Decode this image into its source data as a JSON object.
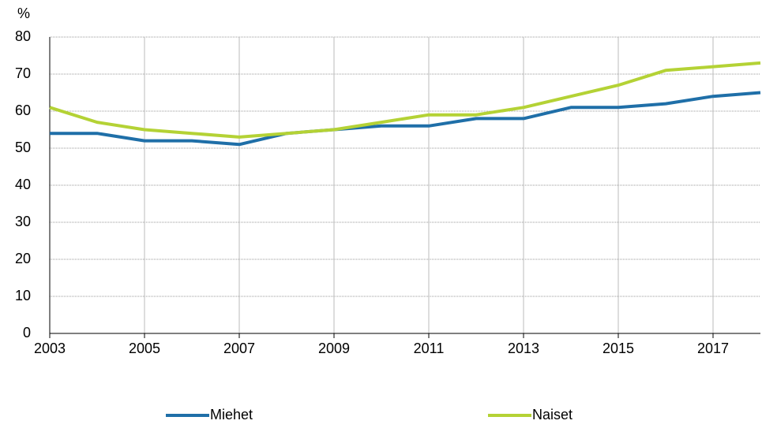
{
  "chart_data": {
    "type": "line",
    "y_label": "%",
    "x": [
      2003,
      2004,
      2005,
      2006,
      2007,
      2008,
      2009,
      2010,
      2011,
      2012,
      2013,
      2014,
      2015,
      2016,
      2017,
      2018
    ],
    "series": [
      {
        "name": "Miehet",
        "color": "#1f6fa8",
        "values": [
          54,
          54,
          52,
          52,
          51,
          54,
          55,
          56,
          56,
          58,
          58,
          61,
          61,
          62,
          64,
          65
        ]
      },
      {
        "name": "Naiset",
        "color": "#b4d235",
        "values": [
          61,
          57,
          55,
          54,
          53,
          54,
          55,
          57,
          59,
          59,
          61,
          64,
          67,
          71,
          72,
          73
        ]
      }
    ],
    "xlim": [
      2003,
      2018
    ],
    "xticks": [
      2003,
      2005,
      2007,
      2009,
      2011,
      2013,
      2015,
      2017
    ],
    "ylim": [
      0,
      80
    ],
    "yticks": [
      0,
      10,
      20,
      30,
      40,
      50,
      60,
      70,
      80
    ],
    "grid": true
  }
}
